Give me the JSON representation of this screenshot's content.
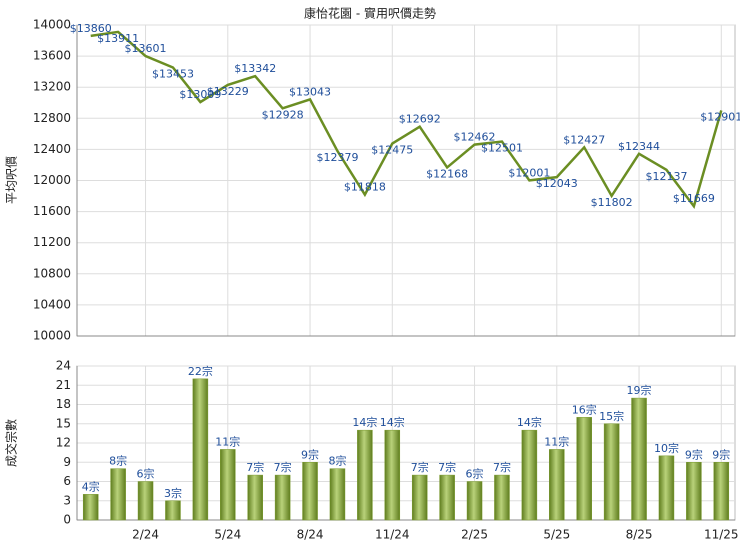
{
  "chart_data": [
    {
      "type": "line",
      "title": "康怡花園 - 實用呎價走勢",
      "y_label": "平均呎價",
      "series": [
        {
          "name": "平均呎價",
          "color": "#6b8e23",
          "values": [
            13860,
            13911,
            13601,
            13453,
            13009,
            13229,
            13342,
            12928,
            13043,
            12379,
            11818,
            12475,
            12692,
            12168,
            12462,
            12501,
            12001,
            12043,
            12427,
            11802,
            12344,
            12137,
            11669,
            12901
          ],
          "value_labels": [
            "$13860",
            "$13911",
            "$13601",
            "$13453",
            "$13009",
            "$13229",
            "$13342",
            "$12928",
            "$13043",
            "$12379",
            "$11818",
            "$12475",
            "$12692",
            "$12168",
            "$12462",
            "$12501",
            "$12001",
            "$12043",
            "$12427",
            "$11802",
            "$12344",
            "$12137",
            "$11669",
            "$12901"
          ]
        }
      ],
      "ylim": [
        10000,
        14000
      ],
      "yticks": [
        10000,
        10400,
        10800,
        11200,
        11600,
        12000,
        12400,
        12800,
        13200,
        13600,
        14000
      ],
      "grid": true
    },
    {
      "type": "bar",
      "y_label": "成交宗數",
      "categories": [
        null,
        null,
        "2/24",
        null,
        null,
        "5/24",
        null,
        null,
        "8/24",
        null,
        null,
        "11/24",
        null,
        null,
        "2/25",
        null,
        null,
        "5/25",
        null,
        null,
        "8/25",
        null,
        null,
        "11/25"
      ],
      "series": [
        {
          "name": "成交宗數",
          "color": "#7a9a2e",
          "values": [
            4,
            8,
            6,
            3,
            22,
            11,
            7,
            7,
            9,
            8,
            14,
            14,
            7,
            7,
            6,
            7,
            14,
            11,
            16,
            15,
            19,
            10,
            9,
            9
          ],
          "value_labels": [
            "4宗",
            "8宗",
            "6宗",
            "3宗",
            "22宗",
            "11宗",
            "7宗",
            "7宗",
            "9宗",
            "8宗",
            "14宗",
            "14宗",
            "7宗",
            "7宗",
            "6宗",
            "7宗",
            "14宗",
            "11宗",
            "16宗",
            "15宗",
            "19宗",
            "10宗",
            "9宗",
            "9宗"
          ]
        }
      ],
      "ylim": [
        0,
        24
      ],
      "yticks": [
        0,
        3,
        6,
        9,
        12,
        15,
        18,
        21,
        24
      ],
      "grid": true
    }
  ]
}
